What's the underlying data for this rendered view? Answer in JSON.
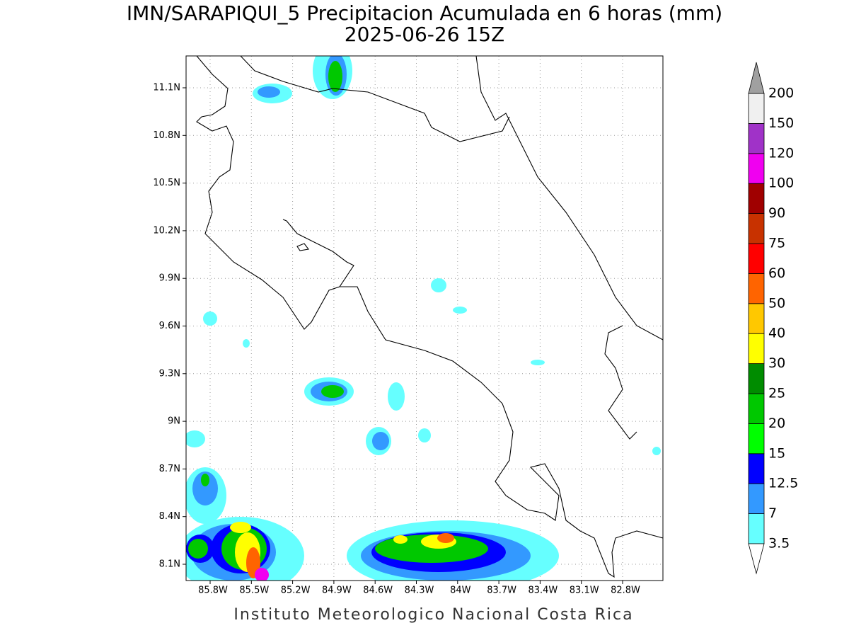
{
  "header": {
    "title": "IMN/SARAPIQUI_5 Precipitacion Acumulada en 6 horas (mm)",
    "subtitle": "2025-06-26 15Z"
  },
  "map": {
    "lon_labels": [
      "85.8W",
      "85.5W",
      "85.2W",
      "84.9W",
      "84.6W",
      "84.3W",
      "84W",
      "83.7W",
      "83.4W",
      "83.1W",
      "82.8W"
    ],
    "lat_labels": [
      "11.1N",
      "10.8N",
      "10.5N",
      "10.2N",
      "9.9N",
      "9.6N",
      "9.3N",
      "9N",
      "8.7N",
      "8.4N",
      "8.1N"
    ]
  },
  "colorbar": {
    "labels": [
      "3.5",
      "7",
      "12.5",
      "15",
      "20",
      "25",
      "30",
      "40",
      "50",
      "60",
      "75",
      "90",
      "100",
      "120",
      "150",
      "200"
    ],
    "colors": [
      "#66ffff",
      "#3399ff",
      "#0000ff",
      "#00ff00",
      "#00c800",
      "#008c00",
      "#ffff00",
      "#ffc800",
      "#ff6400",
      "#ff0000",
      "#c83200",
      "#a00000",
      "#f000f0",
      "#a032c8",
      "#f0f0f0"
    ],
    "below_color": "#ffffff",
    "above_color": "#a0a0a0"
  },
  "footer": "Instituto Meteorologico Nacional Costa Rica"
}
